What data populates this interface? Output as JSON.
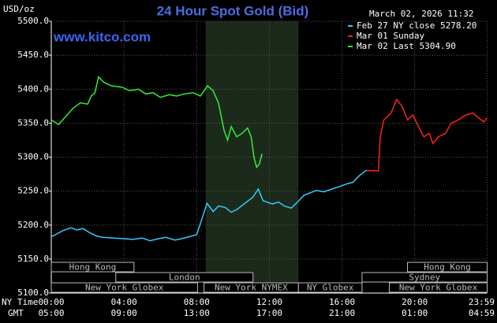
{
  "chart_data": {
    "type": "line",
    "title": "24 Hour Spot Gold (Bid)",
    "y_label": "USD/oz",
    "date": "March 02, 2026 11:32",
    "watermark": "www.kitco.com",
    "x_row_label": "NY Time",
    "x2_row_label": "GMT",
    "xlim": [
      0,
      23.983
    ],
    "xticks": [
      {
        "value": 0,
        "label": "00:00"
      },
      {
        "value": 4,
        "label": "04:00"
      },
      {
        "value": 8,
        "label": "08:00"
      },
      {
        "value": 12,
        "label": "12:00"
      },
      {
        "value": 16,
        "label": "16:00"
      },
      {
        "value": 20,
        "label": "20:00"
      },
      {
        "value": 23.983,
        "label": "23:59"
      }
    ],
    "x2tick_labels": [
      "05:00",
      "09:00",
      "13:00",
      "17:00",
      "21:00",
      "01:00",
      "04:59"
    ],
    "ylim": [
      5100,
      5500
    ],
    "yticks": [
      {
        "value": 5100,
        "label": "5100.0"
      },
      {
        "value": 5150,
        "label": "5150.0"
      },
      {
        "value": 5200,
        "label": "5200.0"
      },
      {
        "value": 5250,
        "label": "5250.0"
      },
      {
        "value": 5300,
        "label": "5300.0"
      },
      {
        "value": 5350,
        "label": "5350.0"
      },
      {
        "value": 5400,
        "label": "5400.0"
      },
      {
        "value": 5450,
        "label": "5450.0"
      },
      {
        "value": 5500,
        "label": "5500.0"
      }
    ],
    "grid": true,
    "highlight_range": [
      8.5,
      13.6
    ],
    "sessions": [
      "Hong Kong",
      "Hong Kong",
      "London",
      "Sydney",
      "New York Globex",
      "New York NYMEX",
      "NY Globex",
      "New York Globex"
    ],
    "series": [
      {
        "name": "Feb 27 NY close 5278.20",
        "color": "#33ccff",
        "x": [
          0,
          0.3,
          0.65,
          1.09,
          1.4,
          1.74,
          2.17,
          2.5,
          2.83,
          3.4,
          4.0,
          4.5,
          5.0,
          5.43,
          5.9,
          6.3,
          6.8,
          7.17,
          7.6,
          8.0,
          8.26,
          8.57,
          8.91,
          9.2,
          9.57,
          9.9,
          10.22,
          10.65,
          11.09,
          11.39,
          11.65,
          12.17,
          12.5,
          12.83,
          13.2,
          13.48,
          13.91,
          14.2,
          14.57,
          15.0,
          15.43,
          15.9,
          16.3,
          16.6,
          16.96,
          17.35
        ],
        "values": [
          5183,
          5187,
          5192,
          5196,
          5193,
          5195,
          5188,
          5184,
          5182,
          5181,
          5180,
          5179,
          5181,
          5177,
          5180,
          5182,
          5178,
          5180,
          5183,
          5186,
          5207,
          5232,
          5220,
          5228,
          5226,
          5219,
          5223,
          5232,
          5241,
          5253,
          5236,
          5231,
          5234,
          5228,
          5225,
          5232,
          5244,
          5247,
          5251,
          5249,
          5253,
          5257,
          5261,
          5263,
          5273,
          5281
        ]
      },
      {
        "name": "Mar 01 Sunday",
        "color": "#ff2020",
        "x": [
          17.35,
          18.0,
          18.1,
          18.3,
          18.7,
          19.0,
          19.3,
          19.6,
          19.9,
          20.2,
          20.5,
          20.8,
          21.0,
          21.3,
          21.7,
          22.0,
          22.4,
          22.8,
          23.2,
          23.5,
          23.8,
          23.983
        ],
        "values": [
          5280,
          5280,
          5330,
          5355,
          5365,
          5385,
          5375,
          5355,
          5362,
          5345,
          5330,
          5335,
          5320,
          5330,
          5335,
          5350,
          5355,
          5362,
          5365,
          5358,
          5352,
          5358
        ]
      },
      {
        "name": "Mar 02 Last 5304.90",
        "color": "#33ee33",
        "x": [
          0,
          0.4,
          0.8,
          1.2,
          1.6,
          2.0,
          2.2,
          2.4,
          2.6,
          2.9,
          3.3,
          3.9,
          4.3,
          4.8,
          5.2,
          5.6,
          6.0,
          6.5,
          6.9,
          7.3,
          7.8,
          8.2,
          8.6,
          8.9,
          9.2,
          9.5,
          9.7,
          9.9,
          10.2,
          10.5,
          10.8,
          11.0,
          11.15,
          11.3,
          11.45,
          11.6
        ],
        "values": [
          5355,
          5348,
          5360,
          5372,
          5380,
          5378,
          5390,
          5395,
          5418,
          5410,
          5405,
          5403,
          5398,
          5400,
          5393,
          5395,
          5388,
          5392,
          5390,
          5393,
          5395,
          5390,
          5405,
          5398,
          5380,
          5340,
          5325,
          5345,
          5330,
          5335,
          5343,
          5330,
          5300,
          5285,
          5290,
          5305
        ]
      }
    ]
  }
}
